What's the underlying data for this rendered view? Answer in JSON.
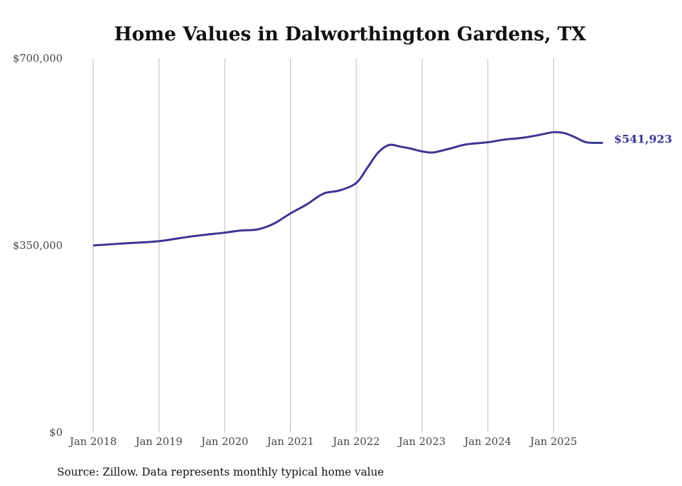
{
  "chart_data": {
    "type": "line",
    "title": "Home Values in Dalworthington Gardens, TX",
    "xlabel": "",
    "ylabel": "",
    "ylim": [
      0,
      700000
    ],
    "y_ticks": [
      "$0",
      "$350,000",
      "$700,000"
    ],
    "y_tick_values": [
      0,
      350000,
      700000
    ],
    "x_ticks": [
      "Jan 2018",
      "Jan 2019",
      "Jan 2020",
      "Jan 2021",
      "Jan 2022",
      "Jan 2023",
      "Jan 2024",
      "Jan 2025"
    ],
    "grid": "vertical",
    "line_color": "#3b3590",
    "end_label": "$541,923",
    "source": "Source: Zillow. Data represents monthly typical home value",
    "series": [
      {
        "name": "Typical home value",
        "x": [
          "2018-01",
          "2018-07",
          "2019-01",
          "2019-07",
          "2020-01",
          "2020-04",
          "2020-07",
          "2020-10",
          "2021-01",
          "2021-04",
          "2021-07",
          "2021-10",
          "2022-01",
          "2022-03",
          "2022-05",
          "2022-07",
          "2022-09",
          "2022-11",
          "2023-01",
          "2023-03",
          "2023-06",
          "2023-09",
          "2024-01",
          "2024-04",
          "2024-07",
          "2024-10",
          "2025-01",
          "2025-03",
          "2025-05",
          "2025-07",
          "2025-10"
        ],
        "values": [
          350000,
          354000,
          358000,
          367000,
          374000,
          378000,
          380000,
          391000,
          410000,
          427000,
          447000,
          453000,
          467000,
          495000,
          524000,
          538000,
          535000,
          531000,
          526000,
          524000,
          531000,
          539000,
          543000,
          548000,
          551000,
          556000,
          562000,
          560000,
          552000,
          543000,
          541923
        ]
      }
    ]
  }
}
